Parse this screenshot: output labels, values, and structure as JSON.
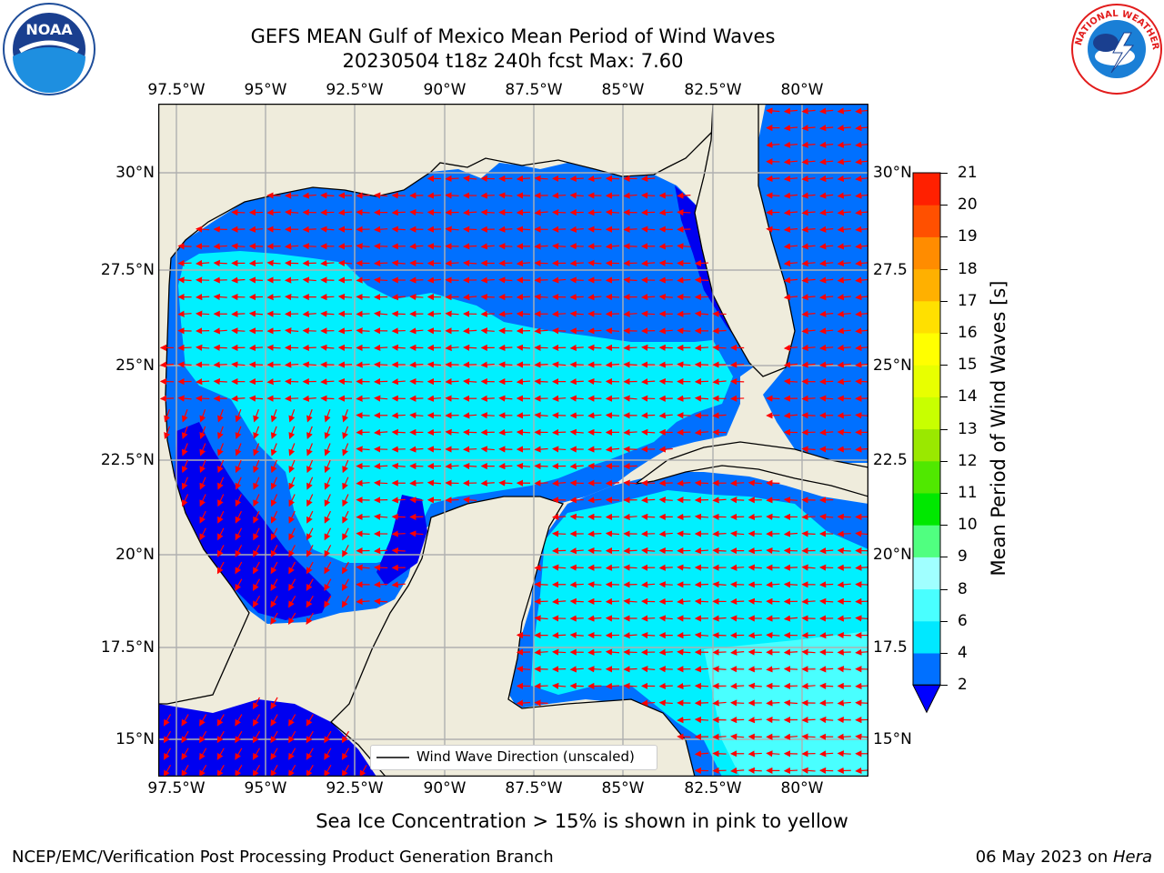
{
  "title": {
    "line1": "GEFS MEAN Gulf of Mexico Mean Period of Wind Waves",
    "line2": "20230504 t18z 240h fcst   Max: 7.60"
  },
  "map": {
    "lon_labels": [
      "97.5°W",
      "95°W",
      "92.5°W",
      "90°W",
      "87.5°W",
      "85°W",
      "82.5°W",
      "80°W"
    ],
    "lat_labels_left": [
      "30°N",
      "27.5°N",
      "25°N",
      "22.5°N",
      "20°N",
      "17.5°N",
      "15°N"
    ],
    "lat_labels_right": [
      "30°N",
      "27.5",
      "25°N",
      "22.5",
      "20°N",
      "17.5",
      "15°N"
    ],
    "legend_label": "Wind Wave Direction (unscaled)",
    "land_color": "#efecdc",
    "arrow_color": "#ff0000"
  },
  "colorbar": {
    "label": "Mean Period of Wind Waves [s]",
    "ticks": [
      "2",
      "4",
      "6",
      "8",
      "9",
      "10",
      "11",
      "12",
      "13",
      "14",
      "15",
      "16",
      "17",
      "18",
      "19",
      "20",
      "21"
    ],
    "colors": [
      "#0070ff",
      "#00e8ff",
      "#49ffff",
      "#a0ffff",
      "#50ff80",
      "#00e800",
      "#50e800",
      "#9ae800",
      "#c8ff00",
      "#e8ff00",
      "#ffff00",
      "#ffe000",
      "#ffb000",
      "#ff8c00",
      "#ff5000",
      "#ff2000",
      "#ff0000"
    ],
    "extend_color": "#0000ff"
  },
  "note": "Sea Ice Concentration > 15% is shown in pink to yellow",
  "footer": {
    "left": "NCEP/EMC/Verification Post Processing Product Generation Branch",
    "right_date": "06 May 2023 on ",
    "right_machine": "Hera"
  },
  "logos": {
    "noaa_text": "NOAA",
    "nws_text": "NATIONAL WEATHER SERVICE"
  }
}
